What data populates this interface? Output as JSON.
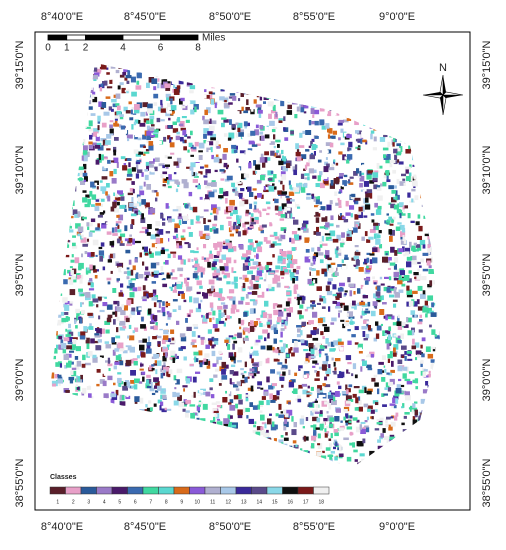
{
  "map": {
    "top_labels": [
      "8°40'0\"E",
      "8°45'0\"E",
      "8°50'0\"E",
      "8°55'0\"E",
      "9°0'0\"E"
    ],
    "bottom_labels": [
      "8°40'0\"E",
      "8°45'0\"E",
      "8°50'0\"E",
      "8°55'0\"E",
      "9°0'0\"E"
    ],
    "left_labels": [
      "39°15'0\"N",
      "39°10'0\"N",
      "39°5'0\"N",
      "39°0'0\"N",
      "38°55'0\"N"
    ],
    "right_labels": [
      "39°15'0\"N",
      "39°10'0\"N",
      "39°5'0\"N",
      "39°0'0\"N",
      "38°55'0\"N"
    ],
    "scale_bar": {
      "values": [
        0,
        1,
        2,
        4,
        6,
        8
      ],
      "unit": "Miles"
    },
    "north": "N",
    "legend": {
      "title": "Classes",
      "classes": [
        {
          "label": "1",
          "color": "#5a1f2a"
        },
        {
          "label": "2",
          "color": "#e8a0c8"
        },
        {
          "label": "3",
          "color": "#2a5a9a"
        },
        {
          "label": "4",
          "color": "#9a7ac8"
        },
        {
          "label": "5",
          "color": "#4a1a6a"
        },
        {
          "label": "6",
          "color": "#3a6ab0"
        },
        {
          "label": "7",
          "color": "#40d8a0"
        },
        {
          "label": "8",
          "color": "#5ad8d0"
        },
        {
          "label": "9",
          "color": "#d86a1a"
        },
        {
          "label": "10",
          "color": "#8a5ad8"
        },
        {
          "label": "11",
          "color": "#b0b0d0"
        },
        {
          "label": "12",
          "color": "#a8c8e8"
        },
        {
          "label": "13",
          "color": "#3a2a9a"
        },
        {
          "label": "14",
          "color": "#5a4a8a"
        },
        {
          "label": "15",
          "color": "#8ad8e8"
        },
        {
          "label": "16",
          "color": "#101010"
        },
        {
          "label": "17",
          "color": "#7a1a1a"
        },
        {
          "label": "18",
          "color": "#f0f0f0"
        }
      ]
    }
  }
}
